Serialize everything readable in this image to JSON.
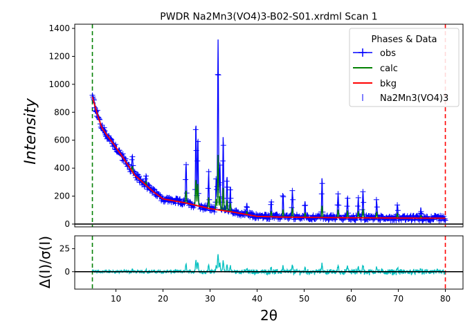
{
  "chart_data": {
    "type": "line",
    "title": "PWDR Na2Mn3(VO4)3-B02-S01.xrdml Scan 1",
    "xlabel": "2θ",
    "xlim": [
      1.25,
      83.75
    ],
    "x_ticks": [
      "10",
      "20",
      "30",
      "40",
      "50",
      "60",
      "70",
      "80"
    ],
    "top_panel": {
      "ylabel": "Intensity",
      "ylim": [
        -20,
        1430
      ],
      "y_ticks": [
        "0",
        "200",
        "400",
        "600",
        "800",
        "1000",
        "1200",
        "1400"
      ],
      "legend": {
        "title": "Phases & Data",
        "placement": "top-right",
        "entries": [
          "obs",
          "calc",
          "bkg",
          "Na2Mn3(VO4)3"
        ]
      },
      "range_markers": [
        {
          "x": 5,
          "color": "#008000"
        },
        {
          "x": 80,
          "color": "#ff0000"
        }
      ],
      "background_curve": [
        [
          5,
          910
        ],
        [
          6,
          790
        ],
        [
          7,
          690
        ],
        [
          8,
          640
        ],
        [
          10,
          550
        ],
        [
          12,
          450
        ],
        [
          14,
          350
        ],
        [
          16,
          290
        ],
        [
          18,
          230
        ],
        [
          20,
          180
        ],
        [
          25,
          150
        ],
        [
          30,
          110
        ],
        [
          35,
          85
        ],
        [
          40,
          55
        ],
        [
          45,
          50
        ],
        [
          50,
          48
        ],
        [
          60,
          45
        ],
        [
          70,
          43
        ],
        [
          80,
          42
        ]
      ],
      "peaks": [
        [
          13.5,
          120
        ],
        [
          16.4,
          80
        ],
        [
          24.9,
          280
        ],
        [
          27.0,
          580
        ],
        [
          27.4,
          500
        ],
        [
          29.7,
          250
        ],
        [
          31.3,
          240
        ],
        [
          31.7,
          1230
        ],
        [
          32.1,
          320
        ],
        [
          32.8,
          520
        ],
        [
          33.6,
          250
        ],
        [
          34.3,
          180
        ],
        [
          37.8,
          70
        ],
        [
          43.0,
          120
        ],
        [
          45.5,
          170
        ],
        [
          47.5,
          200
        ],
        [
          50.2,
          100
        ],
        [
          53.8,
          270
        ],
        [
          57.2,
          180
        ],
        [
          59.2,
          150
        ],
        [
          61.5,
          140
        ],
        [
          62.5,
          200
        ],
        [
          65.4,
          130
        ],
        [
          69.8,
          100
        ],
        [
          74.8,
          60
        ]
      ],
      "noise_amplitude": 18,
      "series": [
        {
          "name": "obs",
          "color": "#0000ff"
        },
        {
          "name": "calc",
          "color": "#008000"
        },
        {
          "name": "bkg",
          "color": "#ff0000"
        }
      ]
    },
    "bottom_panel": {
      "ylabel": "Δ(I)/σ(I)",
      "ylim": [
        -19,
        39
      ],
      "y_ticks": [
        "0",
        "25"
      ],
      "series": [
        {
          "name": "diff",
          "color": "#00bfbf"
        }
      ]
    }
  }
}
